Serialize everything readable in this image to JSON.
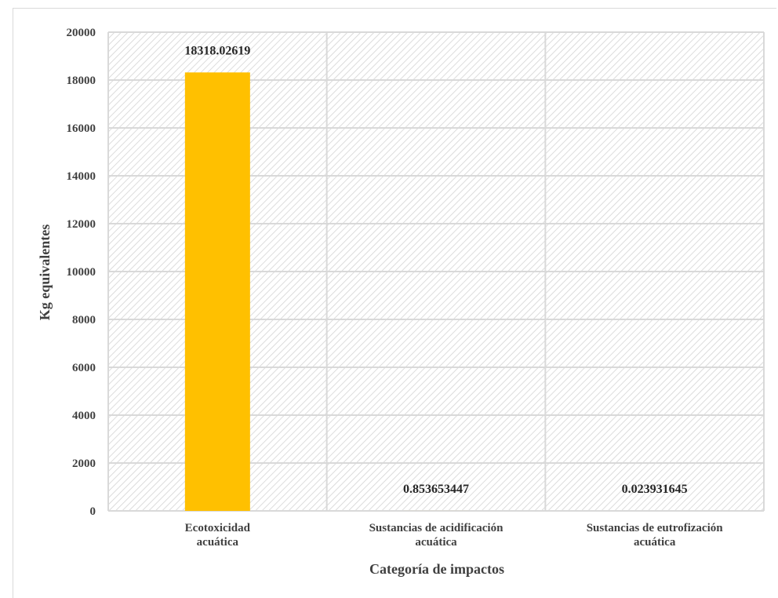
{
  "chart_data": {
    "type": "bar",
    "categories": [
      [
        "Ecotoxicidad",
        "acuática"
      ],
      [
        "Sustancias de acidificación",
        "acuática"
      ],
      [
        "Sustancias de eutrofización",
        "acuática"
      ]
    ],
    "values": [
      18318.02619,
      0.853653447,
      0.023931645
    ],
    "data_labels": [
      "18318.02619",
      "0.853653447",
      "0.023931645"
    ],
    "xlabel": "Categoría de impactos",
    "ylabel": "Kg  equivalentes",
    "ylim": [
      0,
      20000
    ],
    "yticks": [
      0,
      2000,
      4000,
      6000,
      8000,
      10000,
      12000,
      14000,
      16000,
      18000,
      20000
    ],
    "grid": true,
    "plot_background": "hatched",
    "bar_color": "#ffc000",
    "legend": "none"
  }
}
